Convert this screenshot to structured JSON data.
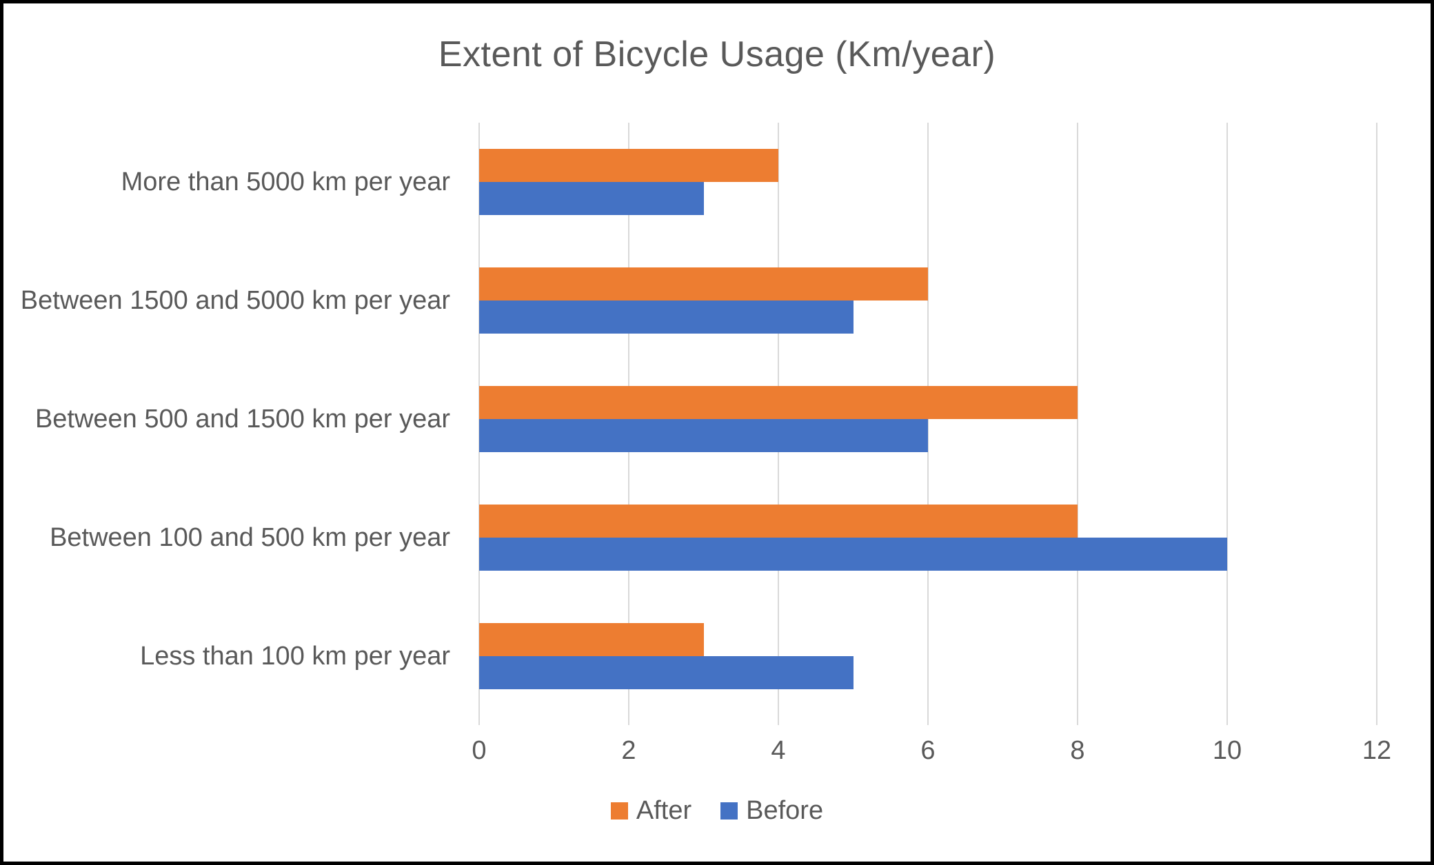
{
  "chart_data": {
    "type": "bar",
    "orientation": "horizontal",
    "title": "Extent of Bicycle Usage (Km/year)",
    "categories": [
      "More than 5000 km per year",
      "Between 1500 and 5000 km per year",
      "Between 500 and 1500 km per year",
      "Between 100 and 500 km per year",
      "Less than 100 km per year"
    ],
    "series": [
      {
        "name": "After",
        "color": "#ED7D31",
        "values": [
          4,
          6,
          8,
          8,
          3
        ]
      },
      {
        "name": "Before",
        "color": "#4472C4",
        "values": [
          3,
          5,
          6,
          10,
          5
        ]
      }
    ],
    "xlim": [
      0,
      12
    ],
    "xticks": [
      0,
      2,
      4,
      6,
      8,
      10,
      12
    ],
    "grid": true,
    "gridline_color": "#D9D9D9",
    "text_color": "#595959",
    "legend_position": "bottom"
  }
}
